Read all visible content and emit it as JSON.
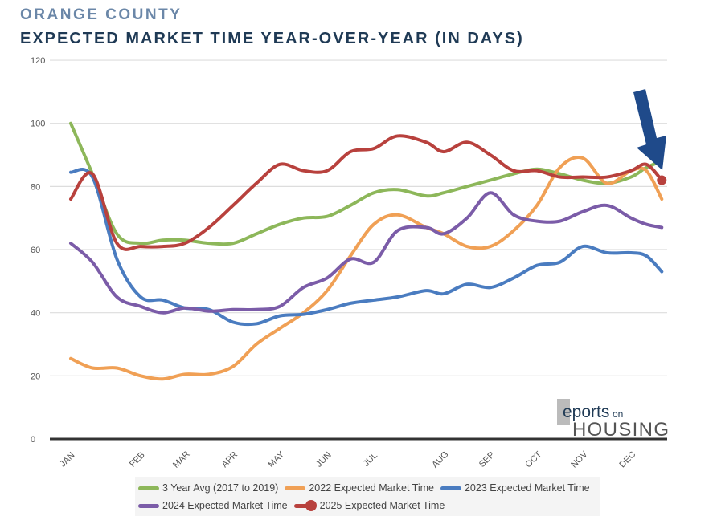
{
  "header": {
    "supertitle": "ORANGE COUNTY",
    "title": "EXPECTED MARKET TIME YEAR-OVER-YEAR (IN DAYS)"
  },
  "logo": {
    "text": "Reports on HOUSING"
  },
  "chart_data": {
    "type": "line",
    "title": "EXPECTED MARKET TIME YEAR-OVER-YEAR (IN DAYS)",
    "ylim": [
      0,
      120
    ],
    "yticks": [
      0,
      20,
      40,
      60,
      80,
      100,
      120
    ],
    "categories": [
      "JAN",
      "FEB",
      "MAR",
      "APR",
      "MAY",
      "JUN",
      "JUL",
      "AUG",
      "SEP",
      "OCT",
      "NOV",
      "DEC"
    ],
    "grid": true,
    "legend": "bottom",
    "x": [
      1,
      1.31,
      1.66,
      2,
      2.5,
      3,
      3.5,
      4,
      4.5,
      5,
      5.5,
      6,
      6.5,
      7,
      7.34,
      7.75,
      8,
      8.5,
      9,
      9.5,
      10,
      10.5,
      11,
      11.5,
      12,
      12.33,
      12.66
    ],
    "series": [
      {
        "name": "3 Year Avg (2017 to 2019)",
        "color": "#8db75a",
        "values": [
          100,
          84,
          65,
          62,
          63,
          63,
          62,
          62,
          65,
          68,
          70,
          70.5,
          74,
          78,
          79,
          77,
          78,
          80,
          82,
          84,
          85.5,
          84,
          82,
          81,
          83,
          86,
          88
        ]
      },
      {
        "name": "2022 Expected Market Time",
        "color": "#f0a055",
        "values": [
          25.5,
          22.5,
          22.5,
          20,
          19,
          20.5,
          20.5,
          23,
          30,
          35,
          40,
          47,
          58,
          68,
          71,
          67,
          65,
          61,
          61,
          66,
          74,
          86,
          89,
          81,
          85,
          85,
          76
        ]
      },
      {
        "name": "2023 Expected Market Time",
        "color": "#4a7cc0",
        "values": [
          84.5,
          83,
          57,
          45,
          44,
          41.5,
          41,
          37,
          36.5,
          39,
          39.5,
          41,
          43,
          44,
          45,
          47,
          46,
          49,
          48,
          51,
          55,
          56,
          61,
          59,
          59,
          58,
          53
        ]
      },
      {
        "name": "2024 Expected Market Time",
        "color": "#7b5ca8",
        "values": [
          62,
          56,
          45,
          42,
          40,
          41.5,
          40.5,
          41,
          41,
          42,
          48,
          51,
          57,
          56,
          66,
          67,
          65,
          70,
          78,
          71,
          69,
          69,
          72,
          74,
          70,
          68,
          67
        ]
      },
      {
        "name": "2025 Expected Market Time",
        "color": "#b8413d",
        "values": [
          76,
          84,
          62,
          61,
          61,
          62,
          67,
          74,
          81,
          87,
          85,
          85,
          91,
          92,
          96,
          94,
          91,
          94,
          90,
          85,
          85,
          83,
          83,
          83,
          85,
          87,
          82
        ],
        "end_marker": true
      }
    ],
    "annotation": {
      "type": "arrow",
      "color": "#1f4a8a",
      "points_to": "2025 Expected Market Time latest value"
    }
  }
}
